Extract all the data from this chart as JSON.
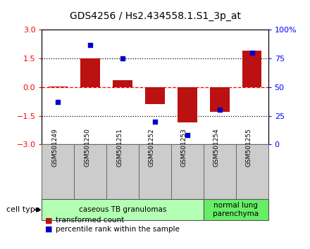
{
  "title": "GDS4256 / Hs2.434558.1.S1_3p_at",
  "samples": [
    "GSM501249",
    "GSM501250",
    "GSM501251",
    "GSM501252",
    "GSM501253",
    "GSM501254",
    "GSM501255"
  ],
  "transformed_count": [
    0.02,
    1.5,
    0.35,
    -0.9,
    -1.85,
    -1.3,
    1.9
  ],
  "percentile_rank": [
    37,
    87,
    75,
    20,
    8,
    30,
    80
  ],
  "left_ylim": [
    -3,
    3
  ],
  "right_ylim": [
    0,
    100
  ],
  "left_ticks": [
    -3,
    -1.5,
    0,
    1.5,
    3
  ],
  "right_ticks": [
    0,
    25,
    50,
    75,
    100
  ],
  "right_tick_labels": [
    "0",
    "25",
    "50",
    "75",
    "100%"
  ],
  "hlines": [
    1.5,
    0.0,
    -1.5
  ],
  "hline_styles": [
    "dotted",
    "dashed",
    "dotted"
  ],
  "hline_colors": [
    "black",
    "red",
    "black"
  ],
  "bar_color": "#bb1111",
  "dot_color": "#0000cc",
  "cell_type_groups": [
    {
      "label": "caseous TB granulomas",
      "start": 0,
      "end": 4,
      "color": "#b3ffb3"
    },
    {
      "label": "normal lung\nparenchyma",
      "start": 5,
      "end": 6,
      "color": "#66ee66"
    }
  ],
  "cell_type_label": "cell type",
  "legend_bar_label": "transformed count",
  "legend_dot_label": "percentile rank within the sample",
  "bar_width": 0.6
}
